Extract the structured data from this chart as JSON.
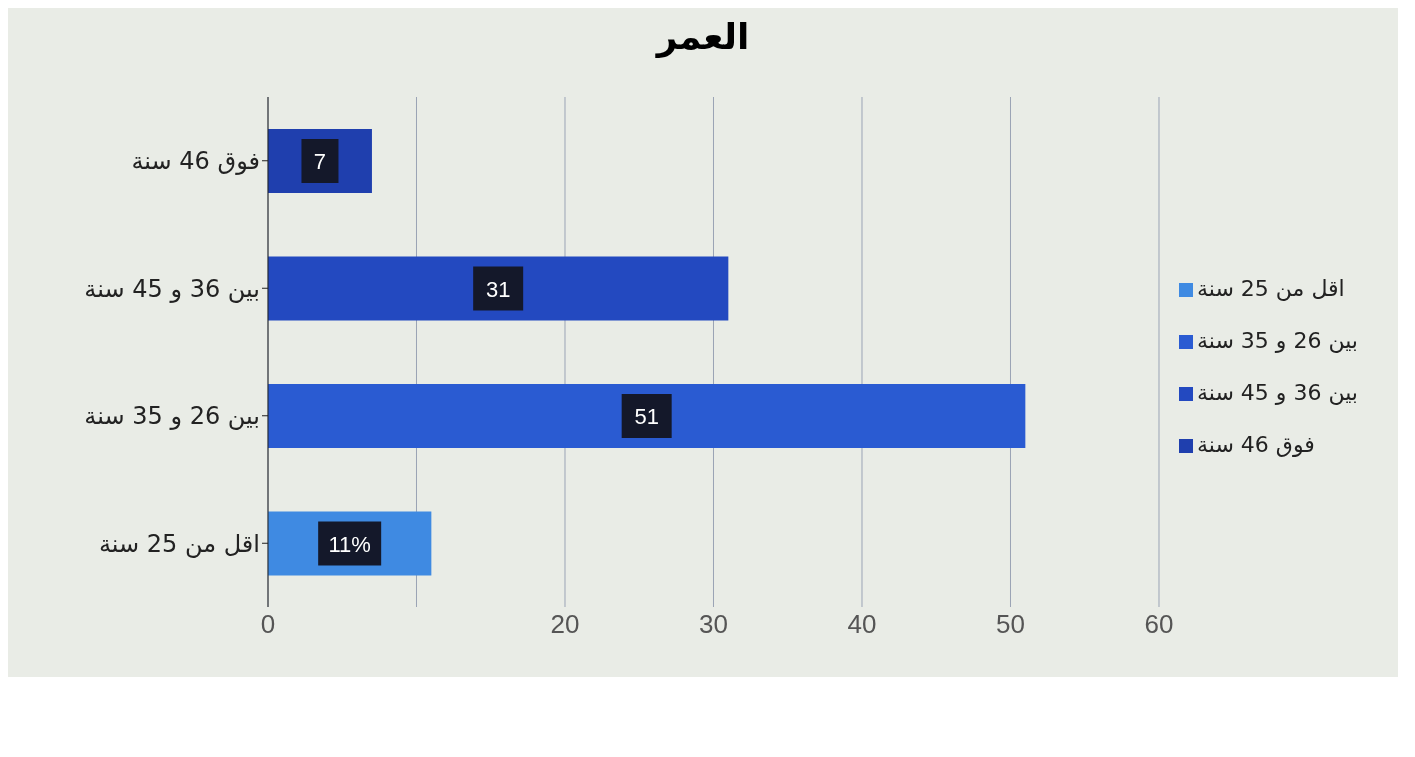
{
  "chart_data": {
    "type": "bar",
    "orientation": "horizontal",
    "stacked": true,
    "title": "العمر",
    "categories": [
      "فوق 46 سنة",
      "بين 36 و 45 سنة",
      "بين 26 و 35 سنة",
      "اقل من 25 سنة"
    ],
    "series": [
      {
        "name": "اقل من 25 سنة",
        "color": "#3f8ae2",
        "values": [
          null,
          null,
          null,
          11
        ],
        "value_labels": [
          null,
          null,
          null,
          "11%"
        ]
      },
      {
        "name": "بين 26 و 35 سنة",
        "color": "#2a5bd2",
        "values": [
          null,
          null,
          51,
          null
        ],
        "value_labels": [
          null,
          null,
          "51",
          null
        ]
      },
      {
        "name": "بين 36 و 45 سنة",
        "color": "#2349c0",
        "values": [
          null,
          31,
          null,
          null
        ],
        "value_labels": [
          null,
          "31",
          null,
          null
        ]
      },
      {
        "name": "فوق 46 سنة",
        "color": "#1f3fae",
        "values": [
          7,
          null,
          null,
          null
        ],
        "value_labels": [
          "7",
          null,
          null,
          null
        ]
      }
    ],
    "xlim": [
      0,
      60
    ],
    "xticks": [
      0,
      {
        "value": 10,
        "label": null
      },
      20,
      30,
      40,
      50,
      60
    ],
    "grid": "x",
    "legend": "right"
  }
}
